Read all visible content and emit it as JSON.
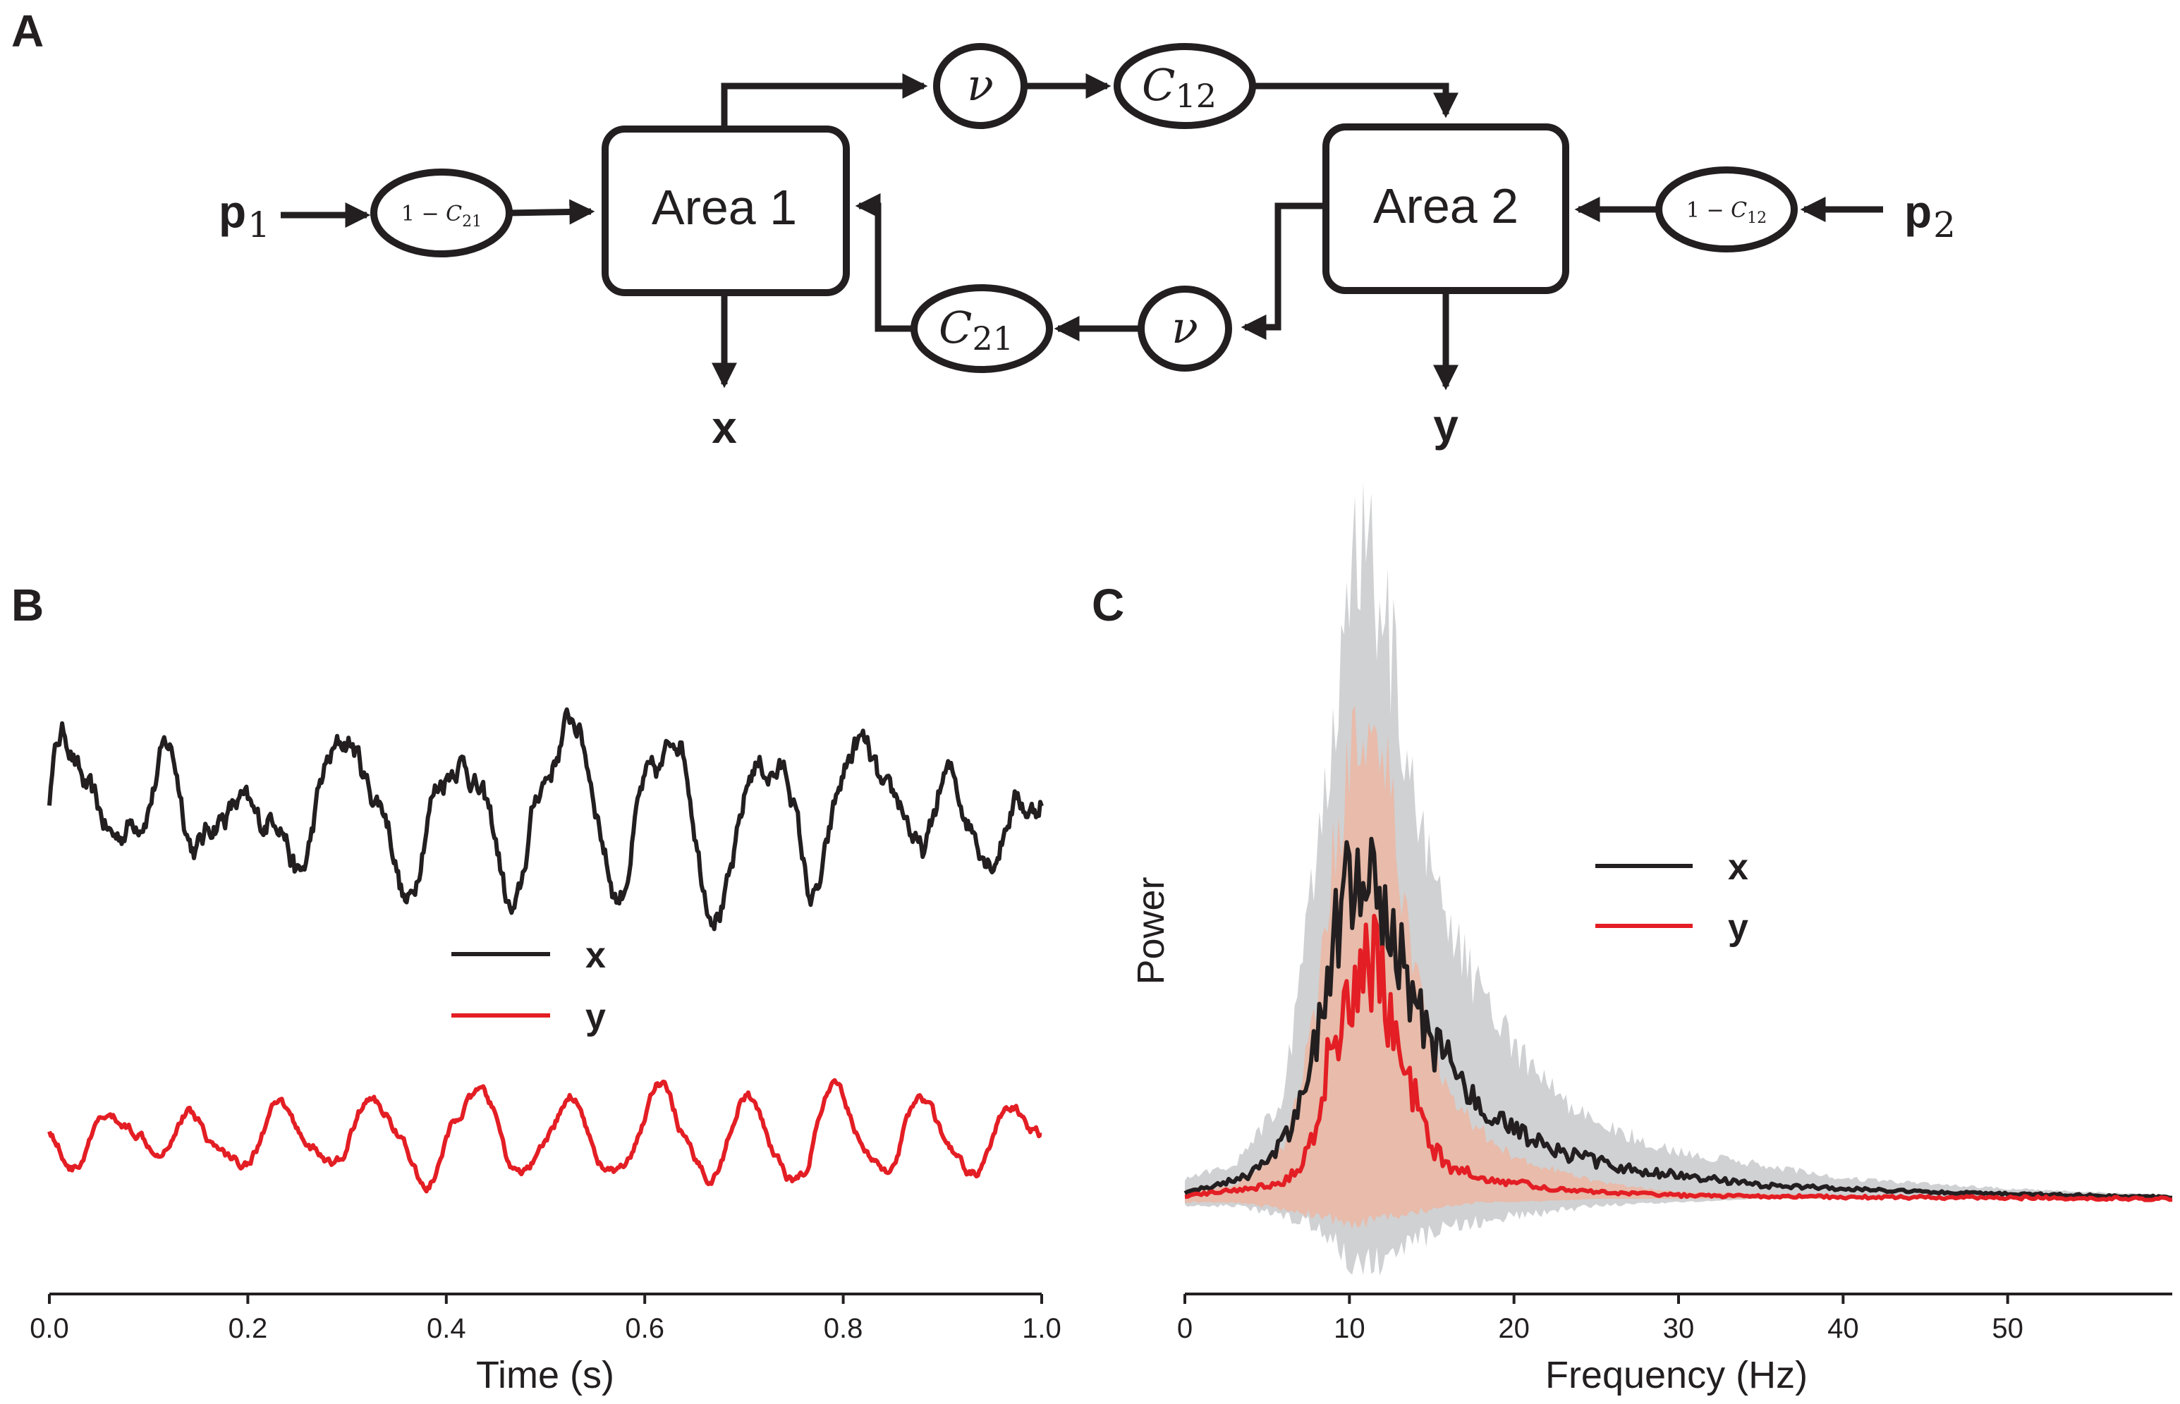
{
  "panels": {
    "a": "A",
    "b": "B",
    "c": "C"
  },
  "diagram": {
    "area1": "Area 1",
    "area2": "Area 2",
    "input1": {
      "sym": "p",
      "sub": "1"
    },
    "input2": {
      "sym": "p",
      "sub": "2"
    },
    "output1": "x",
    "output2": "y",
    "gain_in1": {
      "pre": "1 − ",
      "sym": "C",
      "sub": "21"
    },
    "gain_in2": {
      "pre": "1 − ",
      "sym": "C",
      "sub": "12"
    },
    "nu_top": "ν",
    "nu_bottom": "ν",
    "coupling_12": {
      "sym": "C",
      "sub": "12"
    },
    "coupling_21": {
      "sym": "C",
      "sub": "21"
    }
  },
  "colors": {
    "x": "#231f20",
    "y": "#e31e24",
    "x_band": "#c8c9cb",
    "y_band": "#f2b299"
  },
  "chart_data": [
    {
      "type": "line",
      "panel": "B",
      "title": "",
      "xlabel": "Time (s)",
      "ylabel": "",
      "xlim": [
        0.0,
        1.0
      ],
      "xticks": [
        "0.0",
        "0.2",
        "0.4",
        "0.6",
        "0.8",
        "1.0"
      ],
      "legend": [
        "x",
        "y"
      ],
      "legend_position": "center",
      "series": [
        {
          "name": "x",
          "description": "irregular ~10 Hz oscillation, upper trace, higher amplitude"
        },
        {
          "name": "y",
          "description": "smoother ~11 Hz oscillation, lower trace, smaller amplitude"
        }
      ]
    },
    {
      "type": "line",
      "panel": "C",
      "title": "",
      "xlabel": "Frequency (Hz)",
      "ylabel": "Power",
      "xlim": [
        0,
        60
      ],
      "xticks": [
        "0",
        "10",
        "20",
        "30",
        "40",
        "50"
      ],
      "legend": [
        "x",
        "y"
      ],
      "legend_position": "upper-right",
      "series": [
        {
          "name": "x",
          "freq": [
            0,
            2,
            4,
            6,
            7,
            8,
            9,
            10,
            11,
            12,
            13,
            14,
            15,
            16,
            17,
            18,
            19,
            20,
            22,
            25,
            28,
            30,
            35,
            40,
            45,
            50,
            55,
            60
          ],
          "power": [
            0.02,
            0.04,
            0.07,
            0.17,
            0.28,
            0.48,
            0.76,
            0.96,
            1.0,
            0.88,
            0.72,
            0.58,
            0.47,
            0.4,
            0.33,
            0.27,
            0.23,
            0.2,
            0.15,
            0.11,
            0.08,
            0.07,
            0.04,
            0.03,
            0.02,
            0.015,
            0.01,
            0.005
          ]
        },
        {
          "name": "y",
          "freq": [
            0,
            2,
            4,
            6,
            7,
            8,
            9,
            10,
            11,
            12,
            13,
            14,
            15,
            16,
            17,
            18,
            19,
            20,
            22,
            25,
            28,
            30,
            35,
            40,
            45,
            50,
            55,
            60
          ],
          "power": [
            0.01,
            0.02,
            0.03,
            0.05,
            0.1,
            0.23,
            0.47,
            0.64,
            0.74,
            0.66,
            0.42,
            0.3,
            0.16,
            0.1,
            0.08,
            0.06,
            0.05,
            0.05,
            0.03,
            0.02,
            0.015,
            0.01,
            0.008,
            0.005,
            0.004,
            0.003,
            0.002,
            0.0
          ]
        }
      ],
      "bands": [
        {
          "name": "x",
          "freq": [
            0,
            3,
            6,
            8,
            9,
            10,
            11,
            12,
            13,
            14,
            15,
            16,
            18,
            20,
            22,
            25,
            30,
            35,
            40,
            50,
            60
          ],
          "upper": [
            0.06,
            0.1,
            0.3,
            1.0,
            1.4,
            1.82,
            1.94,
            1.75,
            1.5,
            1.2,
            0.95,
            0.8,
            0.6,
            0.45,
            0.33,
            0.22,
            0.14,
            0.1,
            0.06,
            0.03,
            0.01
          ],
          "lower": [
            -0.02,
            -0.02,
            -0.05,
            -0.08,
            -0.12,
            -0.17,
            -0.2,
            -0.18,
            -0.15,
            -0.13,
            -0.1,
            -0.08,
            -0.07,
            -0.05,
            -0.04,
            -0.02,
            -0.01,
            0.0,
            0.0,
            0.0,
            0.0
          ]
        },
        {
          "name": "y",
          "freq": [
            0,
            3,
            6,
            8,
            9,
            10,
            11,
            12,
            13,
            14,
            15,
            16,
            18,
            20,
            25,
            30,
            40,
            60
          ],
          "upper": [
            0.02,
            0.04,
            0.15,
            0.55,
            1.0,
            1.25,
            1.43,
            1.35,
            1.0,
            0.7,
            0.45,
            0.3,
            0.2,
            0.12,
            0.05,
            0.02,
            0.01,
            0.0
          ],
          "lower": [
            -0.01,
            -0.01,
            -0.03,
            -0.05,
            -0.06,
            -0.07,
            -0.07,
            -0.06,
            -0.05,
            -0.04,
            -0.03,
            -0.02,
            -0.01,
            -0.01,
            0.0,
            0.0,
            0.0,
            0.0
          ]
        }
      ]
    }
  ]
}
